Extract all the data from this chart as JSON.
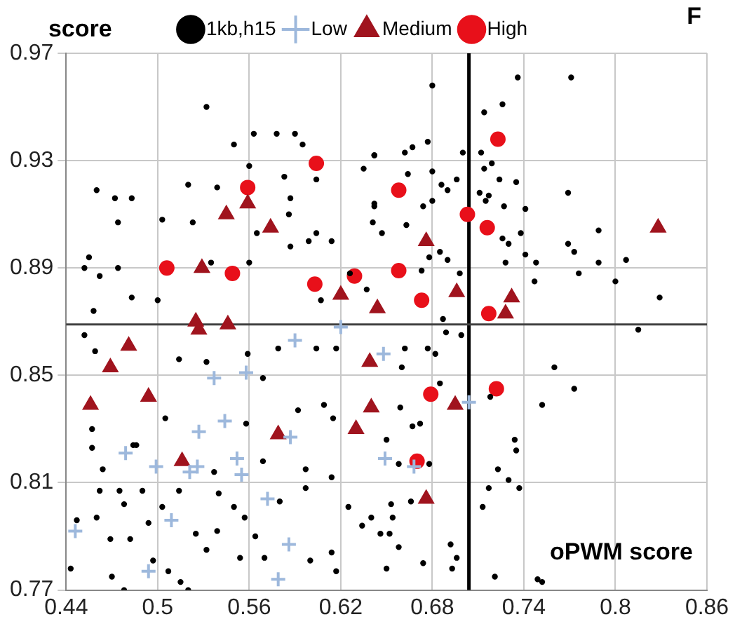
{
  "chart_data": {
    "type": "scatter",
    "xlabel": "oPWM score",
    "ylabel": "score",
    "annotations": [
      "F"
    ],
    "xlim": [
      0.44,
      0.86
    ],
    "xticks": [
      0.44,
      0.5,
      0.56,
      0.62,
      0.68,
      0.74,
      0.8,
      0.86
    ],
    "ylim": [
      0.77,
      0.97
    ],
    "yticks": [
      0.77,
      0.81,
      0.85,
      0.89,
      0.93,
      0.97
    ],
    "grid": true,
    "legend": "top",
    "ref_lines": [
      {
        "axis": "x",
        "value": 0.704,
        "color": "#000000"
      },
      {
        "axis": "y",
        "value": 0.869,
        "color": "#404040"
      }
    ],
    "series": [
      {
        "name": "1kb,h15",
        "color": "#000000",
        "marker": "circle",
        "x": [
          0.532,
          0.55,
          0.563,
          0.578,
          0.59,
          0.595,
          0.56,
          0.583,
          0.46,
          0.472,
          0.483,
          0.52,
          0.539,
          0.503,
          0.474,
          0.523,
          0.587,
          0.586,
          0.604,
          0.604,
          0.565,
          0.587,
          0.599,
          0.614,
          0.455,
          0.452,
          0.462,
          0.474,
          0.535,
          0.56,
          0.626,
          0.637,
          0.607,
          0.483,
          0.5,
          0.635,
          0.642,
          0.642,
          0.736,
          0.771,
          0.68,
          0.726,
          0.714,
          0.677,
          0.667,
          0.662,
          0.642,
          0.7,
          0.712,
          0.719,
          0.68,
          0.664,
          0.686,
          0.69,
          0.696,
          0.714,
          0.724,
          0.735,
          0.711,
          0.717,
          0.715,
          0.727,
          0.741,
          0.769,
          0.674,
          0.68,
          0.642,
          0.641,
          0.663,
          0.647,
          0.738,
          0.789,
          0.726,
          0.73,
          0.685,
          0.769,
          0.773,
          0.741,
          0.807,
          0.789,
          0.748,
          0.678,
          0.69,
          0.728,
          0.673,
          0.698,
          0.776,
          0.8,
          0.747,
          0.829,
          0.458,
          0.452,
          0.459,
          0.514,
          0.532,
          0.559,
          0.579,
          0.569,
          0.604,
          0.617,
          0.505,
          0.457,
          0.457,
          0.484,
          0.486,
          0.464,
          0.537,
          0.558,
          0.569,
          0.592,
          0.609,
          0.615,
          0.597,
          0.614,
          0.462,
          0.475,
          0.478,
          0.46,
          0.469,
          0.447,
          0.443,
          0.47,
          0.478,
          0.49,
          0.503,
          0.514,
          0.525,
          0.532,
          0.539,
          0.54,
          0.55,
          0.557,
          0.564,
          0.554,
          0.57,
          0.58,
          0.597,
          0.6,
          0.614,
          0.617,
          0.497,
          0.507,
          0.515,
          0.52,
          0.494,
          0.482,
          0.625,
          0.634,
          0.687,
          0.699,
          0.689,
          0.662,
          0.677,
          0.682,
          0.66,
          0.815,
          0.76,
          0.773,
          0.752,
          0.718,
          0.685,
          0.659,
          0.672,
          0.667,
          0.65,
          0.734,
          0.735,
          0.723,
          0.73,
          0.737,
          0.717,
          0.678,
          0.658,
          0.653,
          0.64,
          0.654,
          0.652,
          0.646,
          0.658,
          0.666,
          0.713,
          0.692,
          0.696,
          0.693,
          0.674,
          0.65,
          0.721,
          0.749,
          0.752
        ],
        "values": [
          0.95,
          0.936,
          0.94,
          0.94,
          0.94,
          0.936,
          0.928,
          0.924,
          0.919,
          0.916,
          0.916,
          0.921,
          0.92,
          0.908,
          0.907,
          0.907,
          0.916,
          0.91,
          0.923,
          0.903,
          0.903,
          0.898,
          0.9,
          0.9,
          0.894,
          0.89,
          0.887,
          0.89,
          0.892,
          0.892,
          0.888,
          0.882,
          0.878,
          0.879,
          0.878,
          0.927,
          0.932,
          0.913,
          0.961,
          0.961,
          0.958,
          0.951,
          0.948,
          0.937,
          0.935,
          0.933,
          0.932,
          0.933,
          0.933,
          0.929,
          0.926,
          0.925,
          0.921,
          0.919,
          0.923,
          0.927,
          0.923,
          0.922,
          0.918,
          0.917,
          0.915,
          0.913,
          0.912,
          0.918,
          0.913,
          0.915,
          0.914,
          0.907,
          0.906,
          0.903,
          0.903,
          0.904,
          0.901,
          0.899,
          0.896,
          0.899,
          0.896,
          0.895,
          0.893,
          0.892,
          0.892,
          0.894,
          0.893,
          0.892,
          0.889,
          0.888,
          0.888,
          0.885,
          0.885,
          0.879,
          0.874,
          0.865,
          0.859,
          0.856,
          0.855,
          0.858,
          0.86,
          0.849,
          0.86,
          0.86,
          0.834,
          0.83,
          0.823,
          0.824,
          0.824,
          0.815,
          0.814,
          0.832,
          0.818,
          0.837,
          0.839,
          0.834,
          0.815,
          0.812,
          0.807,
          0.807,
          0.802,
          0.797,
          0.789,
          0.796,
          0.778,
          0.775,
          0.77,
          0.807,
          0.801,
          0.807,
          0.791,
          0.785,
          0.792,
          0.806,
          0.801,
          0.797,
          0.79,
          0.782,
          0.782,
          0.803,
          0.808,
          0.781,
          0.784,
          0.777,
          0.781,
          0.777,
          0.773,
          0.77,
          0.795,
          0.789,
          0.801,
          0.794,
          0.871,
          0.865,
          0.866,
          0.86,
          0.86,
          0.858,
          0.853,
          0.867,
          0.853,
          0.845,
          0.839,
          0.842,
          0.847,
          0.838,
          0.832,
          0.831,
          0.826,
          0.826,
          0.822,
          0.815,
          0.811,
          0.808,
          0.808,
          0.817,
          0.817,
          0.802,
          0.797,
          0.797,
          0.791,
          0.791,
          0.786,
          0.803,
          0.801,
          0.787,
          0.782,
          0.778,
          0.78,
          0.778,
          0.775,
          0.774,
          0.773
        ]
      },
      {
        "name": "Low",
        "color": "#9db8dc",
        "marker": "cross",
        "x": [
          0.446,
          0.479,
          0.499,
          0.494,
          0.509,
          0.521,
          0.526,
          0.527,
          0.537,
          0.544,
          0.552,
          0.555,
          0.558,
          0.572,
          0.579,
          0.586,
          0.587,
          0.59,
          0.62,
          0.648,
          0.649,
          0.668,
          0.704
        ],
        "values": [
          0.792,
          0.821,
          0.816,
          0.777,
          0.796,
          0.814,
          0.816,
          0.829,
          0.849,
          0.833,
          0.819,
          0.813,
          0.851,
          0.804,
          0.774,
          0.787,
          0.827,
          0.863,
          0.868,
          0.858,
          0.819,
          0.816,
          0.84
        ]
      },
      {
        "name": "Medium",
        "color": "#a0141e",
        "marker": "triangle",
        "x": [
          0.456,
          0.469,
          0.481,
          0.494,
          0.516,
          0.525,
          0.527,
          0.546,
          0.579,
          0.63,
          0.64,
          0.639,
          0.676,
          0.695,
          0.644,
          0.728,
          0.545,
          0.559,
          0.574,
          0.529,
          0.62,
          0.676,
          0.696,
          0.732,
          0.828
        ],
        "values": [
          0.839,
          0.853,
          0.861,
          0.842,
          0.818,
          0.87,
          0.867,
          0.869,
          0.828,
          0.83,
          0.838,
          0.855,
          0.804,
          0.839,
          0.875,
          0.873,
          0.91,
          0.914,
          0.905,
          0.89,
          0.88,
          0.9,
          0.881,
          0.879,
          0.905
        ]
      },
      {
        "name": "High",
        "color": "#e8101a",
        "marker": "circle",
        "x": [
          0.604,
          0.559,
          0.506,
          0.549,
          0.603,
          0.629,
          0.723,
          0.658,
          0.703,
          0.716,
          0.658,
          0.673,
          0.717,
          0.679,
          0.722,
          0.67
        ],
        "values": [
          0.929,
          0.92,
          0.89,
          0.888,
          0.884,
          0.887,
          0.938,
          0.919,
          0.91,
          0.905,
          0.889,
          0.878,
          0.873,
          0.843,
          0.845,
          0.818
        ]
      }
    ]
  }
}
